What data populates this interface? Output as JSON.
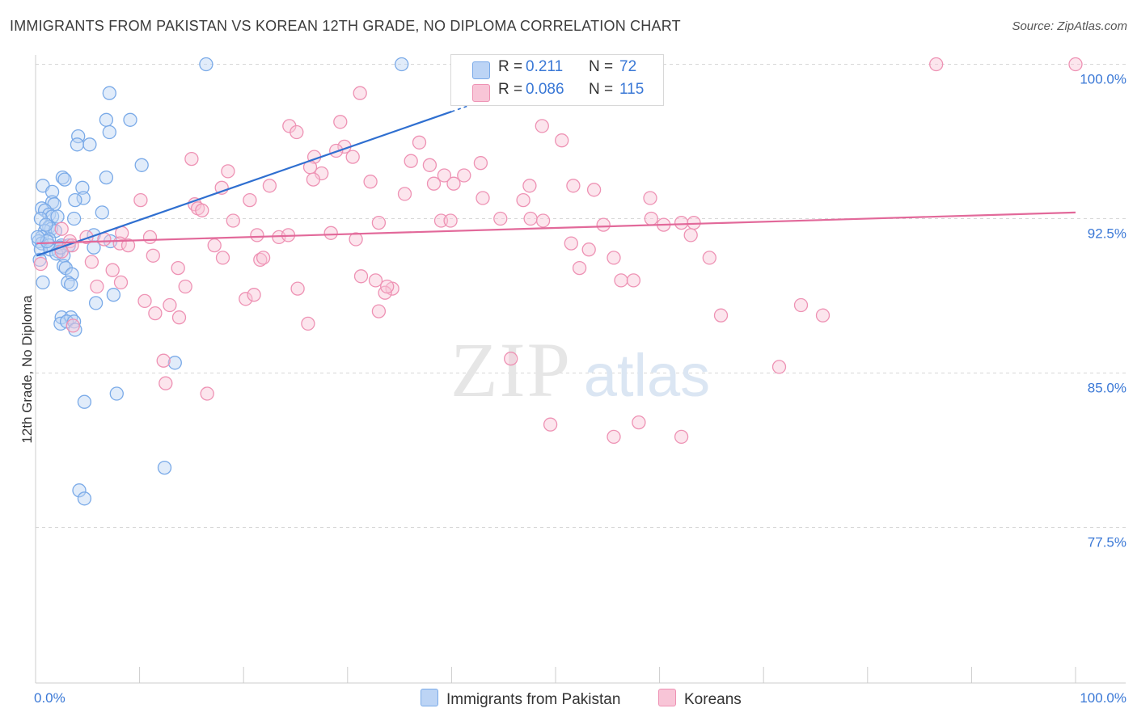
{
  "title": "IMMIGRANTS FROM PAKISTAN VS KOREAN 12TH GRADE, NO DIPLOMA CORRELATION CHART",
  "source": "Source: ZipAtlas.com",
  "watermark": {
    "zip": "ZIP",
    "atlas": "atlas"
  },
  "legend_top": {
    "rows": [
      {
        "r_label": "R =",
        "r_value": "0.211",
        "n_label": "N =",
        "n_value": "72"
      },
      {
        "r_label": "R =",
        "r_value": "0.086",
        "n_label": "N =",
        "n_value": "115"
      }
    ]
  },
  "chart_data": {
    "type": "scatter",
    "xlabel": "",
    "ylabel": "12th Grade, No Diploma",
    "xlim": [
      0,
      100
    ],
    "ylim": [
      71.5,
      101.5
    ],
    "x_tick_labels": [
      "0.0%",
      "100.0%"
    ],
    "y_ticks": [
      77.5,
      85.0,
      92.5,
      100.0
    ],
    "y_tick_labels": [
      "77.5%",
      "85.0%",
      "92.5%",
      "100.0%"
    ],
    "grid": "horizontal dashed",
    "legend_position": "top-center and bottom",
    "series": [
      {
        "name": "Immigrants from Pakistan",
        "color": "#7aaae8",
        "fill": "#bcd4f5",
        "line_color": "#2f6fd0",
        "trend": {
          "x0": 0.1,
          "y0": 90.7,
          "x1": 40.0,
          "y1": 97.7,
          "dash_to_x": 42.0,
          "dash_to_y": 98.05
        },
        "points": [
          [
            16.4,
            100.0
          ],
          [
            35.2,
            100.0
          ],
          [
            7.1,
            98.6
          ],
          [
            6.8,
            97.3
          ],
          [
            9.1,
            97.3
          ],
          [
            4.1,
            96.5
          ],
          [
            7.1,
            96.7
          ],
          [
            4.0,
            96.1
          ],
          [
            5.2,
            96.1
          ],
          [
            10.2,
            95.1
          ],
          [
            2.6,
            94.5
          ],
          [
            2.8,
            94.4
          ],
          [
            6.8,
            94.5
          ],
          [
            0.7,
            94.1
          ],
          [
            4.5,
            94.0
          ],
          [
            1.6,
            93.8
          ],
          [
            4.6,
            93.5
          ],
          [
            3.8,
            93.4
          ],
          [
            1.6,
            93.3
          ],
          [
            1.8,
            93.2
          ],
          [
            0.6,
            93.0
          ],
          [
            0.9,
            92.9
          ],
          [
            1.3,
            92.7
          ],
          [
            1.6,
            92.6
          ],
          [
            6.4,
            92.8
          ],
          [
            0.5,
            92.5
          ],
          [
            2.1,
            92.6
          ],
          [
            3.7,
            92.5
          ],
          [
            1.3,
            92.1
          ],
          [
            1.5,
            92.0
          ],
          [
            0.9,
            91.9
          ],
          [
            1.9,
            91.9
          ],
          [
            0.6,
            91.6
          ],
          [
            1.3,
            91.5
          ],
          [
            0.3,
            91.4
          ],
          [
            5.6,
            91.7
          ],
          [
            0.6,
            91.3
          ],
          [
            1.3,
            91.2
          ],
          [
            2.5,
            91.2
          ],
          [
            3.2,
            91.2
          ],
          [
            7.2,
            91.4
          ],
          [
            0.5,
            91.0
          ],
          [
            1.4,
            91.0
          ],
          [
            2.2,
            90.9
          ],
          [
            2.7,
            90.7
          ],
          [
            5.6,
            91.1
          ],
          [
            2.7,
            90.2
          ],
          [
            2.9,
            90.1
          ],
          [
            3.5,
            89.8
          ],
          [
            0.7,
            89.4
          ],
          [
            3.1,
            89.4
          ],
          [
            3.4,
            89.3
          ],
          [
            7.5,
            88.8
          ],
          [
            5.8,
            88.4
          ],
          [
            2.5,
            87.7
          ],
          [
            3.4,
            87.7
          ],
          [
            2.4,
            87.4
          ],
          [
            3.0,
            87.5
          ],
          [
            3.7,
            87.5
          ],
          [
            3.8,
            87.1
          ],
          [
            13.4,
            85.5
          ],
          [
            7.8,
            84.0
          ],
          [
            4.7,
            83.6
          ],
          [
            12.4,
            80.4
          ],
          [
            4.2,
            79.3
          ],
          [
            4.7,
            78.9
          ],
          [
            0.4,
            90.5
          ],
          [
            1.1,
            91.4
          ],
          [
            2.0,
            90.8
          ],
          [
            0.2,
            91.6
          ],
          [
            1.0,
            92.2
          ],
          [
            2.4,
            91.1
          ]
        ]
      },
      {
        "name": "Koreans",
        "color": "#ee92b4",
        "fill": "#f8c5d7",
        "line_color": "#e2699a",
        "trend": {
          "x0": 0.1,
          "y0": 91.3,
          "x1": 100.0,
          "y1": 92.8
        },
        "points": [
          [
            40.7,
            100.0
          ],
          [
            86.6,
            100.0
          ],
          [
            100.0,
            100.0
          ],
          [
            31.2,
            98.6
          ],
          [
            24.4,
            97.0
          ],
          [
            25.1,
            96.7
          ],
          [
            29.3,
            97.2
          ],
          [
            48.7,
            97.0
          ],
          [
            50.6,
            96.3
          ],
          [
            36.9,
            96.2
          ],
          [
            29.7,
            96.0
          ],
          [
            28.9,
            95.8
          ],
          [
            26.8,
            95.5
          ],
          [
            30.5,
            95.5
          ],
          [
            15.0,
            95.4
          ],
          [
            36.1,
            95.3
          ],
          [
            26.4,
            95.0
          ],
          [
            37.9,
            95.1
          ],
          [
            42.8,
            95.2
          ],
          [
            18.5,
            94.8
          ],
          [
            27.5,
            94.7
          ],
          [
            39.3,
            94.6
          ],
          [
            41.2,
            94.6
          ],
          [
            26.7,
            94.4
          ],
          [
            32.2,
            94.3
          ],
          [
            40.2,
            94.2
          ],
          [
            38.3,
            94.2
          ],
          [
            51.7,
            94.1
          ],
          [
            47.5,
            94.1
          ],
          [
            53.7,
            93.9
          ],
          [
            17.9,
            94.0
          ],
          [
            22.5,
            94.1
          ],
          [
            35.5,
            93.7
          ],
          [
            43.0,
            93.5
          ],
          [
            46.9,
            93.4
          ],
          [
            59.1,
            93.5
          ],
          [
            10.1,
            93.4
          ],
          [
            20.6,
            93.4
          ],
          [
            15.3,
            93.2
          ],
          [
            15.6,
            93.0
          ],
          [
            16.0,
            92.9
          ],
          [
            33.0,
            92.3
          ],
          [
            39.0,
            92.4
          ],
          [
            39.9,
            92.4
          ],
          [
            44.7,
            92.5
          ],
          [
            47.6,
            92.5
          ],
          [
            48.8,
            92.4
          ],
          [
            54.6,
            92.2
          ],
          [
            59.2,
            92.5
          ],
          [
            60.4,
            92.2
          ],
          [
            62.1,
            92.3
          ],
          [
            19.0,
            92.4
          ],
          [
            21.3,
            91.7
          ],
          [
            23.4,
            91.6
          ],
          [
            24.3,
            91.7
          ],
          [
            28.4,
            91.8
          ],
          [
            30.8,
            91.5
          ],
          [
            11.0,
            91.6
          ],
          [
            17.2,
            91.2
          ],
          [
            51.5,
            91.3
          ],
          [
            53.2,
            91.0
          ],
          [
            63.3,
            92.3
          ],
          [
            63.0,
            91.7
          ],
          [
            55.6,
            90.6
          ],
          [
            2.5,
            92.0
          ],
          [
            3.3,
            91.4
          ],
          [
            3.5,
            91.2
          ],
          [
            4.9,
            91.6
          ],
          [
            8.3,
            91.8
          ],
          [
            8.1,
            91.3
          ],
          [
            6.6,
            91.5
          ],
          [
            8.9,
            91.2
          ],
          [
            11.3,
            90.7
          ],
          [
            13.7,
            90.1
          ],
          [
            18.0,
            90.6
          ],
          [
            21.6,
            90.5
          ],
          [
            21.9,
            90.6
          ],
          [
            7.4,
            90.0
          ],
          [
            5.4,
            90.4
          ],
          [
            52.3,
            90.1
          ],
          [
            64.8,
            90.6
          ],
          [
            31.3,
            89.7
          ],
          [
            32.7,
            89.5
          ],
          [
            34.3,
            89.1
          ],
          [
            20.2,
            88.6
          ],
          [
            21.0,
            88.8
          ],
          [
            25.2,
            89.1
          ],
          [
            33.6,
            88.9
          ],
          [
            33.8,
            89.2
          ],
          [
            56.3,
            89.5
          ],
          [
            57.5,
            89.5
          ],
          [
            8.2,
            89.4
          ],
          [
            5.9,
            89.2
          ],
          [
            14.4,
            89.2
          ],
          [
            10.5,
            88.5
          ],
          [
            12.9,
            88.3
          ],
          [
            11.5,
            87.9
          ],
          [
            33.0,
            88.0
          ],
          [
            26.2,
            87.4
          ],
          [
            13.8,
            87.7
          ],
          [
            65.9,
            87.8
          ],
          [
            73.6,
            88.3
          ],
          [
            75.7,
            87.8
          ],
          [
            45.7,
            85.7
          ],
          [
            71.5,
            85.3
          ],
          [
            12.3,
            85.6
          ],
          [
            12.5,
            84.5
          ],
          [
            16.5,
            84.0
          ],
          [
            49.5,
            82.5
          ],
          [
            55.6,
            81.9
          ],
          [
            58.0,
            82.6
          ],
          [
            62.1,
            81.9
          ],
          [
            3.6,
            87.3
          ],
          [
            2.5,
            90.9
          ],
          [
            0.5,
            90.3
          ]
        ]
      }
    ]
  }
}
